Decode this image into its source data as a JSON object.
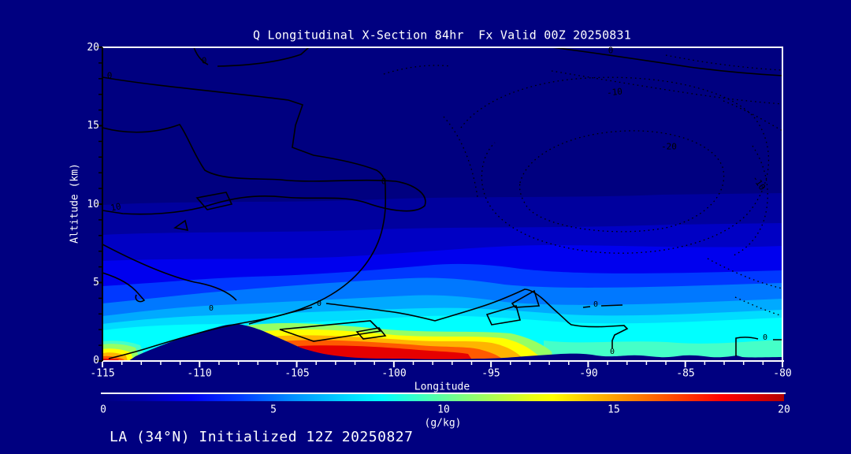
{
  "title": "Q Longitudinal X-Section 84hr  Fx Valid 00Z 20250831",
  "footer": "LA (34°N) Initialized 12Z 20250827",
  "axes": {
    "y_label": "Altitude (km)",
    "y_ticks": [
      "20",
      "15",
      "10",
      "5",
      "0"
    ],
    "x_label": "Longitude",
    "x_ticks": [
      "-115",
      "-110",
      "-105",
      "-100",
      "-95",
      "-90",
      "-85",
      "-80"
    ]
  },
  "colorbar": {
    "ticks": [
      "0",
      "5",
      "10",
      "15",
      "20"
    ],
    "units": "(g/kg)",
    "palette": [
      "#000080",
      "#0000f0",
      "#0038ff",
      "#0090ff",
      "#00d8ff",
      "#00ffff",
      "#40ffbf",
      "#80ff80",
      "#b4ff4b",
      "#eaff15",
      "#ffff00",
      "#ffc800",
      "#ff9600",
      "#ff6400",
      "#ff3200",
      "#ff0000",
      "#b20000"
    ]
  },
  "contour_labels": {
    "c1": "0",
    "c2": "0",
    "c3": "10",
    "c4": "0",
    "c5": "0",
    "c6": "-10",
    "c7": "-20",
    "c8": "-10",
    "c9": "0",
    "c10": "0",
    "c11": "0",
    "c12": "0",
    "c13": "0"
  },
  "chart_data": {
    "type": "heatmap",
    "title": "Q Longitudinal X-Section 84hr  Fx Valid 00Z 20250831",
    "subtitle": "LA (34°N) Initialized 12Z 20250827",
    "xlabel": "Longitude",
    "ylabel": "Altitude (km)",
    "units": "g/kg",
    "x_range": [
      -115,
      -80
    ],
    "y_range": [
      0,
      20
    ],
    "colorbar_range": [
      0,
      20
    ],
    "legend_position": "bottom colorbar",
    "grid": false,
    "x": [
      -115,
      -110,
      -105,
      -100,
      -95,
      -90,
      -85,
      -80
    ],
    "altitudes_km": [
      0,
      1,
      2,
      3,
      4,
      5,
      7,
      10,
      15
    ],
    "q_gkg_rows_by_altitude": [
      [
        18,
        null,
        18,
        19,
        13,
        8,
        8,
        7
      ],
      [
        8,
        null,
        16,
        17,
        12,
        8,
        8,
        7
      ],
      [
        7,
        2,
        8,
        15,
        9,
        7,
        7,
        6
      ],
      [
        5,
        2,
        6,
        7,
        7,
        6,
        6,
        5
      ],
      [
        4,
        2,
        5,
        5,
        5,
        5,
        5,
        4
      ],
      [
        3,
        2,
        4,
        4,
        4,
        4,
        4,
        4
      ],
      [
        2,
        1,
        2,
        3,
        3,
        3,
        3,
        2
      ],
      [
        1,
        1,
        1,
        2,
        2,
        2,
        1,
        1
      ],
      [
        0,
        0,
        0,
        0,
        0,
        0,
        0,
        0
      ]
    ],
    "terrain_note": "dark terrain silhouette peaking near longitude -108.5 at about 2.3 km; low rolling terrain east of -101",
    "overlay_contours": {
      "solid_labels": [
        0,
        10
      ],
      "dotted_labels": [
        -10,
        -20
      ],
      "style": "black solid lines for values >= 0, black dotted lines for negative values"
    }
  }
}
